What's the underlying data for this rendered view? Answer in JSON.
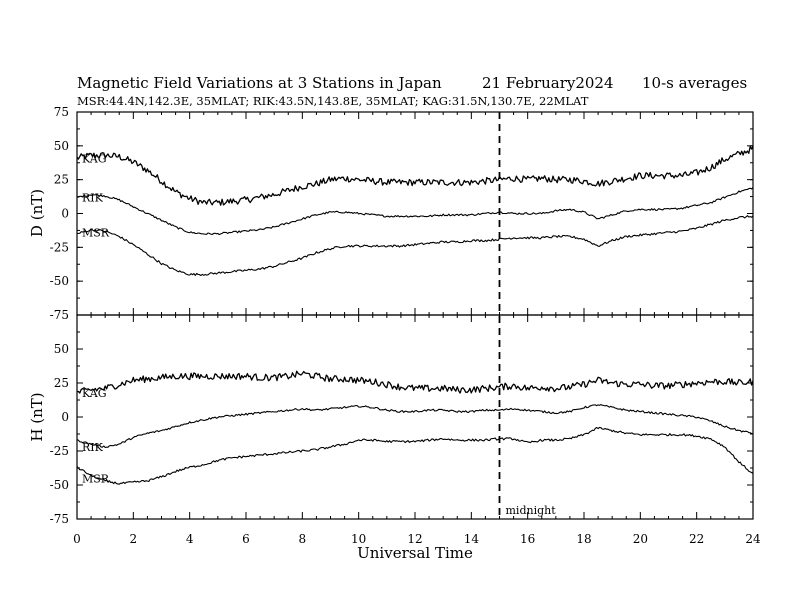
{
  "header": {
    "title": "Magnetic Field Variations at 3 Stations in Japan",
    "date": "21 February2024",
    "averaging": "10-s averages",
    "stations_line": "MSR:44.4N,142.3E, 35MLAT;  RIK:43.5N,143.8E, 35MLAT;  KAG:31.5N,130.7E, 22MLAT"
  },
  "chart_data": [
    {
      "type": "line",
      "panel": "D",
      "ylabel": "D (nT)",
      "xlabel": "Universal Time",
      "xlim": [
        0,
        24
      ],
      "ylim": [
        -75,
        75
      ],
      "x_ticks": [
        "0",
        "2",
        "4",
        "6",
        "8",
        "10",
        "12",
        "14",
        "16",
        "18",
        "20",
        "22",
        "24"
      ],
      "y_ticks": [
        "75",
        "50",
        "25",
        "0",
        "-25",
        "-50",
        "-75"
      ],
      "x": [
        0,
        0.5,
        1,
        1.5,
        2,
        2.5,
        3,
        3.5,
        4,
        4.5,
        5,
        5.5,
        6,
        6.5,
        7,
        7.5,
        8,
        8.5,
        9,
        9.5,
        10,
        10.5,
        11,
        11.5,
        12,
        12.5,
        13,
        13.5,
        14,
        14.5,
        15,
        15.5,
        16,
        16.5,
        17,
        17.5,
        18,
        18.5,
        19,
        19.5,
        20,
        20.5,
        21,
        21.5,
        22,
        22.5,
        23,
        23.5,
        24
      ],
      "series": [
        {
          "name": "KAG",
          "noise": 2.5,
          "values": [
            41,
            43,
            43,
            42,
            38,
            32,
            24,
            16,
            11,
            8,
            8,
            9,
            10,
            12,
            14,
            17,
            20,
            22,
            25,
            26,
            25,
            24,
            23,
            23,
            23,
            23,
            23,
            23,
            23,
            24,
            25,
            26,
            25,
            26,
            25,
            25,
            24,
            22,
            24,
            26,
            28,
            28,
            28,
            28,
            30,
            34,
            40,
            44,
            48
          ]
        },
        {
          "name": "RIK",
          "noise": 0.7,
          "values": [
            12,
            14,
            13,
            10,
            5,
            0,
            -5,
            -10,
            -14,
            -15,
            -15,
            -14,
            -13,
            -12,
            -10,
            -7,
            -4,
            -1,
            1,
            1,
            0,
            -1,
            -2,
            -2,
            -2,
            -2,
            -1,
            -1,
            -1,
            0,
            1,
            0,
            0,
            0,
            2,
            3,
            1,
            -4,
            -1,
            2,
            3,
            3,
            3,
            4,
            6,
            8,
            12,
            16,
            19
          ]
        },
        {
          "name": "MSR",
          "noise": 0.8,
          "values": [
            -15,
            -12,
            -13,
            -17,
            -23,
            -30,
            -37,
            -42,
            -45,
            -45,
            -44,
            -43,
            -42,
            -41,
            -39,
            -36,
            -33,
            -29,
            -26,
            -24,
            -24,
            -24,
            -24,
            -24,
            -23,
            -22,
            -21,
            -21,
            -20,
            -20,
            -19,
            -18,
            -18,
            -18,
            -17,
            -17,
            -19,
            -24,
            -20,
            -17,
            -16,
            -15,
            -14,
            -13,
            -11,
            -8,
            -5,
            -3,
            -2
          ]
        }
      ]
    },
    {
      "type": "line",
      "panel": "H",
      "ylabel": "H (nT)",
      "xlabel": "Universal Time",
      "xlim": [
        0,
        24
      ],
      "ylim": [
        -75,
        75
      ],
      "x_ticks": [
        "0",
        "2",
        "4",
        "6",
        "8",
        "10",
        "12",
        "14",
        "16",
        "18",
        "20",
        "22",
        "24"
      ],
      "y_ticks": [
        "75",
        "50",
        "25",
        "0",
        "-25",
        "-50",
        "-75"
      ],
      "x": [
        0,
        0.5,
        1,
        1.5,
        2,
        2.5,
        3,
        3.5,
        4,
        4.5,
        5,
        5.5,
        6,
        6.5,
        7,
        7.5,
        8,
        8.5,
        9,
        9.5,
        10,
        10.5,
        11,
        11.5,
        12,
        12.5,
        13,
        13.5,
        14,
        14.5,
        15,
        15.5,
        16,
        16.5,
        17,
        17.5,
        18,
        18.5,
        19,
        19.5,
        20,
        20.5,
        21,
        21.5,
        22,
        22.5,
        23,
        23.5,
        24
      ],
      "series": [
        {
          "name": "KAG",
          "noise": 2.5,
          "values": [
            18,
            20,
            21,
            24,
            27,
            28,
            29,
            30,
            30,
            30,
            30,
            30,
            30,
            29,
            29,
            30,
            32,
            30,
            28,
            28,
            27,
            26,
            24,
            22,
            21,
            21,
            21,
            20,
            20,
            21,
            22,
            23,
            21,
            22,
            21,
            22,
            24,
            27,
            25,
            24,
            24,
            23,
            23,
            24,
            25,
            26,
            26,
            25,
            26
          ]
        },
        {
          "name": "RIK",
          "noise": 0.7,
          "values": [
            -17,
            -20,
            -22,
            -20,
            -15,
            -12,
            -10,
            -7,
            -4,
            -2,
            0,
            1,
            2,
            3,
            4,
            5,
            6,
            5,
            6,
            7,
            8,
            7,
            5,
            4,
            4,
            5,
            5,
            4,
            4,
            5,
            5,
            6,
            5,
            4,
            3,
            4,
            7,
            9,
            7,
            5,
            4,
            3,
            2,
            1,
            0,
            -3,
            -7,
            -10,
            -12
          ]
        },
        {
          "name": "MSR",
          "noise": 0.8,
          "values": [
            -37,
            -43,
            -47,
            -49,
            -48,
            -47,
            -44,
            -40,
            -37,
            -35,
            -32,
            -30,
            -29,
            -28,
            -27,
            -26,
            -25,
            -24,
            -22,
            -20,
            -17,
            -17,
            -18,
            -18,
            -18,
            -17,
            -16,
            -17,
            -17,
            -17,
            -16,
            -16,
            -19,
            -17,
            -17,
            -16,
            -13,
            -8,
            -10,
            -12,
            -13,
            -13,
            -13,
            -13,
            -14,
            -16,
            -22,
            -33,
            -42
          ]
        }
      ]
    }
  ],
  "annotations": {
    "marker_x": 15,
    "marker_label": "midnight",
    "marker_style": "dashed"
  }
}
